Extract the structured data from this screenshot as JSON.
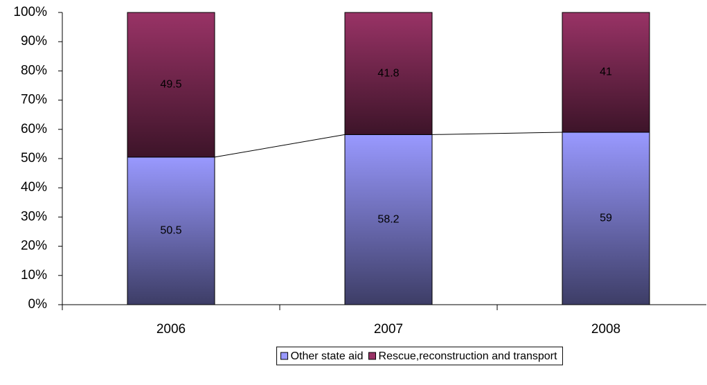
{
  "chart_data": {
    "type": "stacked_bar",
    "categories": [
      "2006",
      "2007",
      "2008"
    ],
    "series": [
      {
        "name": "Other state aid",
        "color": "#9999ff",
        "values": [
          50.5,
          58.2,
          59
        ]
      },
      {
        "name": "Rescue,reconstruction and transport",
        "color": "#993366",
        "values": [
          49.5,
          41.8,
          41
        ]
      }
    ],
    "ylim": [
      0,
      100
    ],
    "yticks": [
      {
        "value": 0,
        "label": "0%"
      },
      {
        "value": 10,
        "label": "10%"
      },
      {
        "value": 20,
        "label": "20%"
      },
      {
        "value": 30,
        "label": "30%"
      },
      {
        "value": 40,
        "label": "40%"
      },
      {
        "value": 50,
        "label": "50%"
      },
      {
        "value": 60,
        "label": "60%"
      },
      {
        "value": 70,
        "label": "70%"
      },
      {
        "value": 80,
        "label": "80%"
      },
      {
        "value": 90,
        "label": "90%"
      },
      {
        "value": 100,
        "label": "100%"
      }
    ],
    "legend": "bottom"
  }
}
